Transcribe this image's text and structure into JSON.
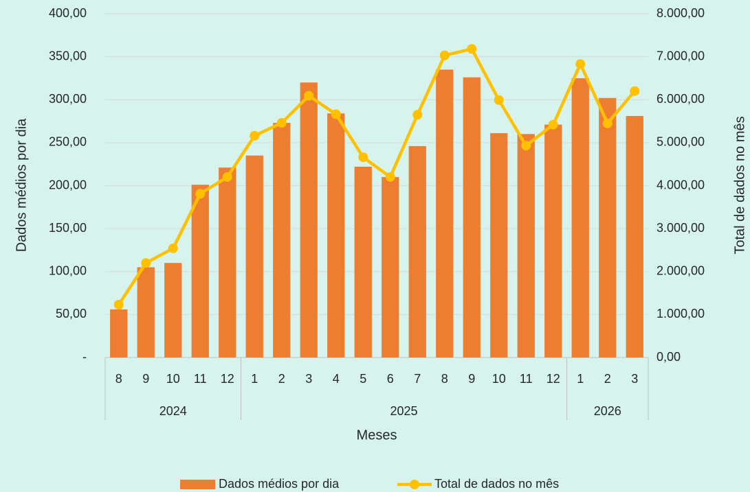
{
  "chart_data": {
    "type": "bar-line",
    "x_label": "Meses",
    "y_label": "Dados médios por dia",
    "y2_label": "Total de dados no mês",
    "groups": [
      {
        "label": "2024",
        "categories": [
          "8",
          "9",
          "10",
          "11",
          "12"
        ]
      },
      {
        "label": "2025",
        "categories": [
          "1",
          "2",
          "3",
          "4",
          "5",
          "6",
          "7",
          "8",
          "9",
          "10",
          "11",
          "12"
        ]
      },
      {
        "label": "2026",
        "categories": [
          "1",
          "2",
          "3"
        ]
      }
    ],
    "series": [
      {
        "name": "Dados médios por dia",
        "type": "bar",
        "color": "#ed7d31",
        "values": [
          56,
          105,
          110,
          201,
          221,
          235,
          273,
          320,
          284,
          222,
          210,
          246,
          335,
          326,
          261,
          260,
          271,
          325,
          302,
          281
        ]
      },
      {
        "name": "Total de dados no mês",
        "type": "line",
        "axis": "y2",
        "color": "#ffc000",
        "values": [
          1230,
          2200,
          2540,
          3810,
          4200,
          5160,
          5460,
          6090,
          5660,
          4660,
          4200,
          5650,
          7030,
          7180,
          5990,
          4930,
          5420,
          6830,
          5450,
          6200
        ]
      }
    ],
    "ylim": [
      0,
      400
    ],
    "yticks": [
      {
        "value": 0,
        "label": "-"
      },
      {
        "value": 50,
        "label": "50,00"
      },
      {
        "value": 100,
        "label": "100,00"
      },
      {
        "value": 150,
        "label": "150,00"
      },
      {
        "value": 200,
        "label": "200,00"
      },
      {
        "value": 250,
        "label": "250,00"
      },
      {
        "value": 300,
        "label": "300,00"
      },
      {
        "value": 350,
        "label": "350,00"
      },
      {
        "value": 400,
        "label": "400,00"
      }
    ],
    "y2lim": [
      0,
      8000
    ],
    "y2ticks": [
      {
        "value": 0,
        "label": "0,00"
      },
      {
        "value": 1000,
        "label": "1.000,00"
      },
      {
        "value": 2000,
        "label": "2.000,00"
      },
      {
        "value": 3000,
        "label": "3.000,00"
      },
      {
        "value": 4000,
        "label": "4.000,00"
      },
      {
        "value": 5000,
        "label": "5.000,00"
      },
      {
        "value": 6000,
        "label": "6.000,00"
      },
      {
        "value": 7000,
        "label": "7.000,00"
      },
      {
        "value": 8000,
        "label": "8.000,00"
      }
    ],
    "grid": true,
    "legend": "bottom"
  }
}
